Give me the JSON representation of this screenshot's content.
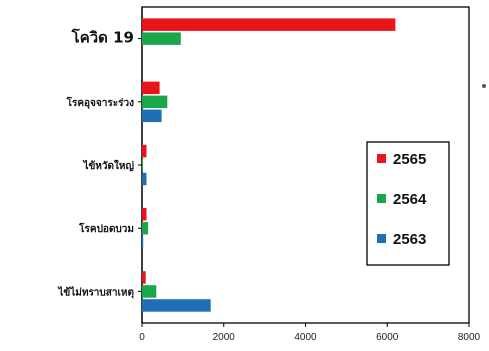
{
  "chart_data": {
    "type": "bar",
    "orientation": "horizontal",
    "categories": [
      "โควิด 19",
      "โรคอุจจาระร่วง",
      "ไข้หวัดใหญ่",
      "โรคปอดบวม",
      "ไข้ไม่ทราบสาเหตุ"
    ],
    "series": [
      {
        "name": "2565",
        "color": "#e8141b",
        "values": [
          6200,
          430,
          110,
          110,
          90
        ]
      },
      {
        "name": "2564",
        "color": "#1aa64a",
        "values": [
          950,
          620,
          20,
          150,
          350
        ]
      },
      {
        "name": "2563",
        "color": "#1f6fb5",
        "values": [
          0,
          480,
          110,
          30,
          1680
        ]
      }
    ],
    "xlim": [
      0,
      8000
    ],
    "xticks": [
      "0",
      "2000",
      "4000",
      "6000",
      "8000"
    ],
    "grid": false,
    "legend_position": "right"
  }
}
